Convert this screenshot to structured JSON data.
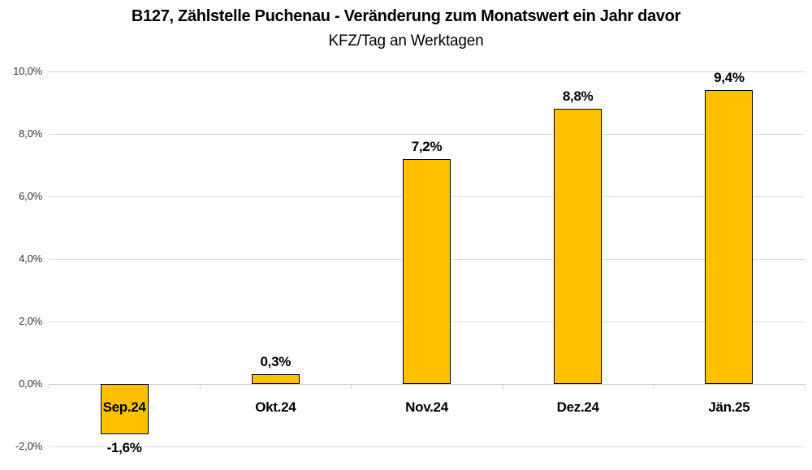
{
  "chart_data": {
    "type": "bar",
    "title": "B127, Zählstelle Puchenau - Veränderung zum Monatswert ein Jahr davor",
    "subtitle": "KFZ/Tag an Werktagen",
    "categories": [
      "Sep.24",
      "Okt.24",
      "Nov.24",
      "Dez.24",
      "Jän.25"
    ],
    "values": [
      -1.6,
      0.3,
      7.2,
      8.8,
      9.4
    ],
    "data_labels": [
      "-1,6%",
      "0,3%",
      "7,2%",
      "8,8%",
      "9,4%"
    ],
    "xlabel": "",
    "ylabel": "",
    "ylim": [
      -2,
      10
    ],
    "y_ticks": [
      10,
      8,
      6,
      4,
      2,
      0,
      -2
    ],
    "y_tick_labels": [
      "10,0%",
      "8,0%",
      "6,0%",
      "4,0%",
      "2,0%",
      "0,0%",
      "-2,0%"
    ],
    "grid": true,
    "legend_position": "none",
    "bar_color": "#ffc000",
    "bar_border_color": "#000000",
    "gridline_color": "#d9d9d9",
    "text_color": "#000000"
  }
}
